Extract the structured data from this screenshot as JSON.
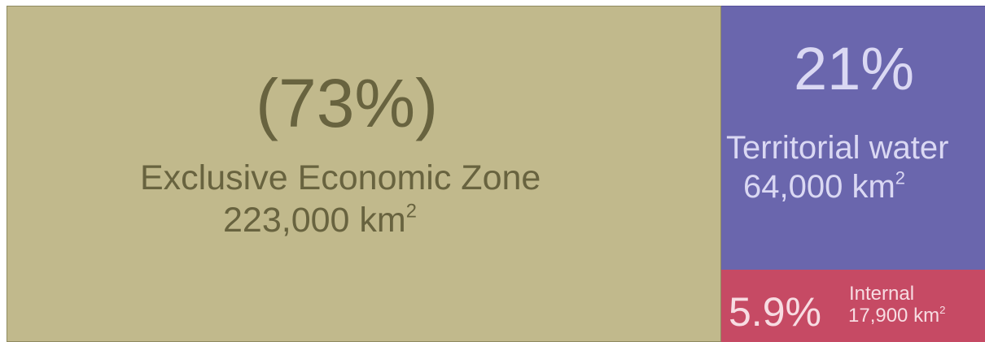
{
  "chart_data": {
    "type": "treemap",
    "items": [
      {
        "key": "eez",
        "percent_label": "(73%)",
        "label": "Exclusive Economic Zone",
        "area_number": "223,000 km",
        "area_unit_sup": "2",
        "value": 223000,
        "color": "#c1b98c",
        "text_color": "#68633f"
      },
      {
        "key": "tw",
        "percent_label": "21%",
        "label": "Territorial water",
        "area_number": "64,000 km",
        "area_unit_sup": "2",
        "value": 64000,
        "color": "#6a66ad",
        "text_color": "#dad8f3"
      },
      {
        "key": "int",
        "percent_label": "5.9%",
        "label": "Internal",
        "area_number": "17,900 km",
        "area_unit_sup": "2",
        "value": 17900,
        "color": "#c64a64",
        "text_color": "#f7dce2"
      }
    ]
  }
}
